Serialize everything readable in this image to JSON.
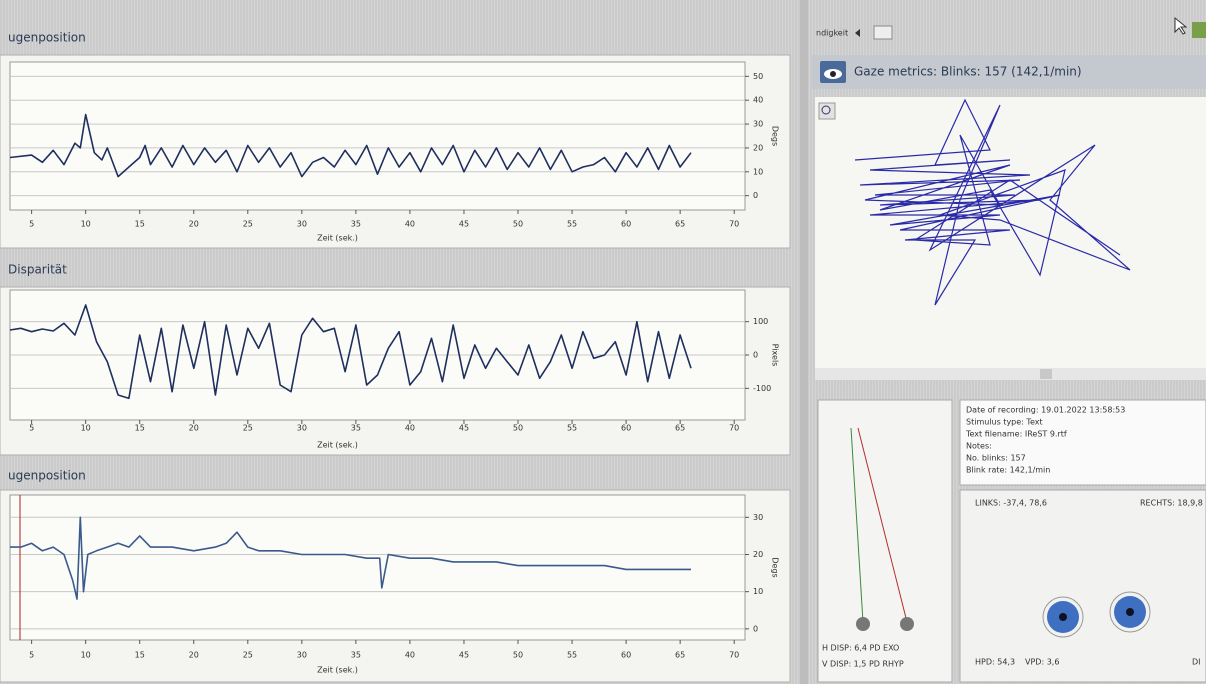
{
  "top_bar": {
    "right_label": "ndigkeit"
  },
  "charts": [
    {
      "type": "line",
      "title": "ugenposition",
      "xlabel": "Zeit (sek.)",
      "ylabel": "Degs",
      "color": "#1f2f5e",
      "xlim": [
        3,
        71
      ],
      "ylim": [
        -6,
        56
      ],
      "xticks": [
        5,
        10,
        15,
        20,
        25,
        30,
        35,
        40,
        45,
        50,
        55,
        60,
        65,
        70
      ],
      "yticks": [
        0,
        10,
        20,
        30,
        40,
        50
      ],
      "grid": true,
      "x": [
        3,
        5,
        6,
        7,
        8,
        9,
        9.5,
        10,
        10.3,
        10.8,
        11.5,
        12,
        13,
        14,
        15,
        15.5,
        16,
        17,
        18,
        19,
        20,
        21,
        22,
        23,
        24,
        25,
        26,
        27,
        28,
        29,
        30,
        31,
        32,
        33,
        34,
        35,
        36,
        37,
        38,
        39,
        40,
        41,
        42,
        43,
        44,
        45,
        46,
        47,
        48,
        49,
        50,
        51,
        52,
        53,
        54,
        55,
        56,
        57,
        58,
        59,
        60,
        61,
        62,
        63,
        64,
        65,
        66
      ],
      "values": [
        16,
        17,
        14,
        19,
        13,
        22,
        20,
        34,
        28,
        18,
        15,
        20,
        8,
        12,
        16,
        21,
        13,
        20,
        12,
        21,
        13,
        20,
        14,
        19,
        10,
        21,
        14,
        20,
        12,
        18,
        8,
        14,
        16,
        12,
        19,
        13,
        21,
        9,
        20,
        12,
        18,
        10,
        20,
        13,
        21,
        10,
        19,
        12,
        20,
        11,
        18,
        12,
        20,
        11,
        19,
        10,
        12,
        13,
        16,
        10,
        18,
        12,
        20,
        11,
        21,
        12,
        18
      ]
    },
    {
      "type": "line",
      "title": "Disparität",
      "xlabel": "Zeit (sek.)",
      "ylabel": "Pixels",
      "color": "#1f2f5e",
      "xlim": [
        3,
        71
      ],
      "ylim": [
        -195,
        195
      ],
      "xticks": [
        5,
        10,
        15,
        20,
        25,
        30,
        35,
        40,
        45,
        50,
        55,
        60,
        65,
        70
      ],
      "yticks": [
        -100,
        0,
        100
      ],
      "grid": true,
      "x": [
        3,
        4,
        5,
        6,
        7,
        8,
        9,
        10,
        11,
        12,
        13,
        14,
        15,
        16,
        17,
        18,
        19,
        20,
        21,
        22,
        23,
        24,
        25,
        26,
        27,
        28,
        29,
        30,
        31,
        32,
        33,
        34,
        35,
        36,
        37,
        38,
        39,
        40,
        41,
        42,
        43,
        44,
        45,
        46,
        47,
        48,
        49,
        50,
        51,
        52,
        53,
        54,
        55,
        56,
        57,
        58,
        59,
        60,
        61,
        62,
        63,
        64,
        65,
        66
      ],
      "values": [
        75,
        80,
        70,
        78,
        72,
        95,
        60,
        150,
        40,
        -20,
        -120,
        -130,
        60,
        -80,
        80,
        -110,
        90,
        -40,
        100,
        -120,
        90,
        -60,
        80,
        20,
        95,
        -90,
        -110,
        60,
        110,
        70,
        80,
        -50,
        90,
        -90,
        -60,
        20,
        70,
        -90,
        -50,
        50,
        -80,
        90,
        -70,
        30,
        -40,
        20,
        -20,
        -60,
        30,
        -70,
        -20,
        60,
        -40,
        70,
        -10,
        0,
        40,
        -60,
        100,
        -80,
        70,
        -70,
        60,
        -40
      ]
    },
    {
      "type": "line",
      "title": "ugenposition",
      "xlabel": "Zeit (sek.)",
      "ylabel": "Degs",
      "color": "#3a5a8c",
      "xlim": [
        3,
        71
      ],
      "ylim": [
        -3,
        36
      ],
      "xticks": [
        5,
        10,
        15,
        20,
        25,
        30,
        35,
        40,
        45,
        50,
        55,
        60,
        65,
        70
      ],
      "yticks": [
        0,
        10,
        20,
        30
      ],
      "grid": true,
      "x": [
        3,
        4,
        5,
        6,
        7,
        8,
        8.8,
        9.2,
        9.5,
        9.8,
        10.2,
        11,
        12,
        13,
        14,
        15,
        16,
        18,
        20,
        22,
        23,
        24,
        25,
        26,
        28,
        30,
        32,
        34,
        36,
        37.2,
        37.4,
        38,
        40,
        42,
        44,
        46,
        48,
        50,
        52,
        54,
        56,
        58,
        60,
        62,
        63,
        64,
        65,
        66
      ],
      "values": [
        22,
        22,
        23,
        21,
        22,
        20,
        13,
        8,
        30,
        10,
        20,
        21,
        22,
        23,
        22,
        25,
        22,
        22,
        21,
        22,
        23,
        26,
        22,
        21,
        21,
        20,
        20,
        20,
        19,
        19,
        11,
        20,
        19,
        19,
        18,
        18,
        18,
        17,
        17,
        17,
        17,
        17,
        16,
        16,
        16,
        16,
        16,
        16
      ]
    }
  ],
  "gaze": {
    "title": "Gaze metrics: Blinks: 157 (142,1/min)"
  },
  "disparity_panel": {
    "h": "H DISP: 6,4 PD  EXO",
    "v": "V DISP: 1,5 PD  RHYP"
  },
  "info": {
    "lines": [
      "Date of recording: 19.01.2022 13:58:53",
      "Stimulus type: Text",
      "Text filename: IReST 9.rtf",
      "Notes:",
      "No. blinks: 157",
      "Blink rate: 142,1/min"
    ]
  },
  "eyes": {
    "left": "LINKS: -37,4, 78,6",
    "right": "RECHTS: 18,9,8",
    "hpd": "HPD: 54,3",
    "vpd": "VPD: 3,6",
    "cut": "DI"
  }
}
